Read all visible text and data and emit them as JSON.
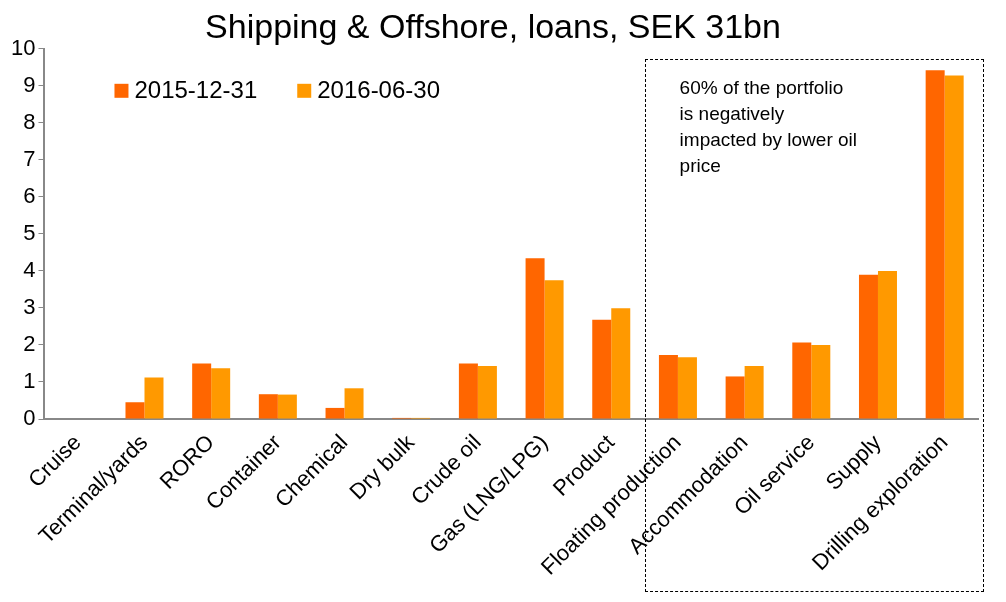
{
  "chart_data": {
    "type": "bar",
    "title": "Shipping & Offshore, loans, SEK 31bn",
    "categories": [
      "Cruise",
      "Terminal/yards",
      "RORO",
      "Container",
      "Chemical",
      "Dry bulk",
      "Crude oil",
      "Gas (LNG/LPG)",
      "Product",
      "Floating production",
      "Accommodation",
      "Oil service",
      "Supply",
      "Drilling exploration"
    ],
    "series": [
      {
        "name": "2015-12-31",
        "color": "#ff6600",
        "values": [
          0,
          0.45,
          1.5,
          0.67,
          0.3,
          0.03,
          1.5,
          4.34,
          2.68,
          1.73,
          1.15,
          2.07,
          3.9,
          9.42
        ]
      },
      {
        "name": "2016-06-30",
        "color": "#ff9900",
        "values": [
          0,
          1.12,
          1.37,
          0.66,
          0.83,
          0.03,
          1.43,
          3.75,
          2.99,
          1.67,
          1.43,
          2.0,
          4.0,
          9.28
        ]
      }
    ],
    "ylim": [
      0,
      10
    ],
    "yticks": [
      0,
      1,
      2,
      3,
      4,
      5,
      6,
      7,
      8,
      9,
      10
    ],
    "grid": false,
    "legend": "top left",
    "annotations": [
      "60% of the portfolio is negatively impacted by lower oil price"
    ]
  }
}
